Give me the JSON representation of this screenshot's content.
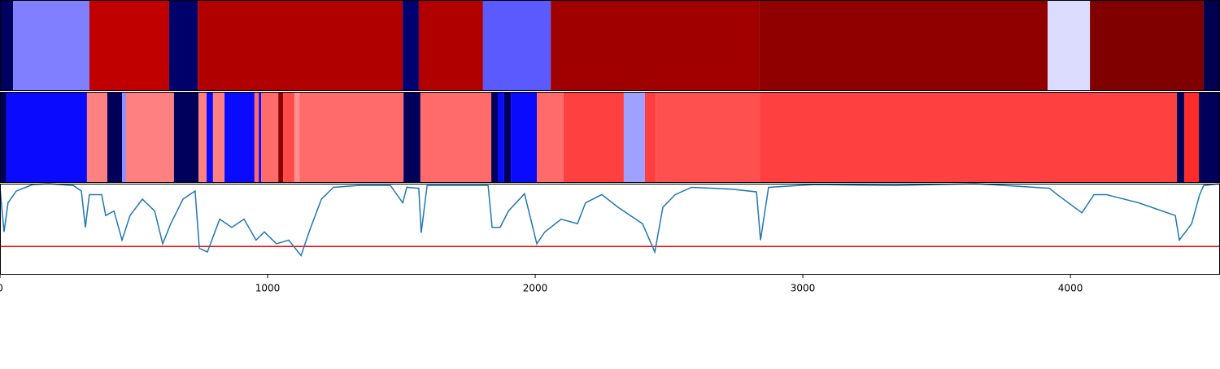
{
  "chart_data": [
    {
      "type": "strip",
      "xlim": [
        0,
        4559
      ],
      "edges": [
        0,
        49,
        334,
        632,
        739,
        1505,
        1565,
        1805,
        2058,
        2836,
        3915,
        4073,
        4498,
        4559
      ],
      "colors": [
        "#000060",
        "#7f7fff",
        "#c00000",
        "#00006a",
        "#b00000",
        "#000070",
        "#b00000",
        "#5a5aff",
        "#a00000",
        "#900000",
        "#dcdcff",
        "#800000",
        "#000050"
      ]
    },
    {
      "type": "strip",
      "xlim": [
        0,
        4559
      ],
      "edges": [
        0,
        24,
        325,
        401,
        456,
        471,
        650,
        742,
        772,
        796,
        839,
        951,
        967,
        976,
        1040,
        1058,
        1100,
        1119,
        1508,
        1571,
        1836,
        1860,
        1884,
        1909,
        2006,
        2106,
        2331,
        2410,
        2450,
        2839,
        4398,
        4426,
        4480,
        4559
      ],
      "colors": [
        "#00005a",
        "#0a0aff",
        "#ff8080",
        "#00005a",
        "#9090ff",
        "#ff8080",
        "#00005a",
        "#ff8080",
        "#0a0aff",
        "#ff8080",
        "#0a0aff",
        "#ff6a6a",
        "#0a0aff",
        "#ff6a6a",
        "#8b0000",
        "#ff4a4a",
        "#ff9090",
        "#ff6a6a",
        "#00005a",
        "#ff6a6a",
        "#00005a",
        "#0a0aff",
        "#00005a",
        "#0a0aff",
        "#ff6a6a",
        "#ff4040",
        "#a0a0ff",
        "#ff4040",
        "#ff5050",
        "#ff4040",
        "#00005a",
        "#ff2a2a",
        "#00005a"
      ]
    },
    {
      "type": "line",
      "xlim": [
        0,
        4559
      ],
      "ylim": [
        0,
        1
      ],
      "color": "#1f77b4",
      "threshold": 0.31,
      "threshold_color": "#ff0000",
      "xticks": [
        0,
        1000,
        2000,
        3000,
        4000
      ],
      "x": [
        0,
        15,
        30,
        61,
        122,
        182,
        274,
        304,
        319,
        334,
        380,
        395,
        426,
        456,
        486,
        532,
        578,
        608,
        638,
        684,
        729,
        745,
        775,
        821,
        866,
        912,
        957,
        988,
        1033,
        1079,
        1125,
        1155,
        1201,
        1246,
        1337,
        1459,
        1505,
        1520,
        1565,
        1574,
        1596,
        1824,
        1839,
        1869,
        1900,
        1960,
        2006,
        2036,
        2097,
        2158,
        2188,
        2249,
        2310,
        2401,
        2447,
        2477,
        2523,
        2584,
        2736,
        2827,
        2842,
        2872,
        3040,
        3343,
        3647,
        3921,
        3951,
        4043,
        4088,
        4134,
        4255,
        4392,
        4407,
        4453,
        4483,
        4498,
        4559
      ],
      "values": [
        0.96,
        0.47,
        0.79,
        0.92,
        0.99,
        1.0,
        0.98,
        0.92,
        0.52,
        0.88,
        0.88,
        0.65,
        0.7,
        0.38,
        0.65,
        0.83,
        0.7,
        0.34,
        0.56,
        0.83,
        0.92,
        0.29,
        0.25,
        0.61,
        0.52,
        0.61,
        0.38,
        0.47,
        0.34,
        0.38,
        0.21,
        0.47,
        0.83,
        0.96,
        0.98,
        0.98,
        0.79,
        0.96,
        0.95,
        0.46,
        0.98,
        0.98,
        0.52,
        0.52,
        0.7,
        0.89,
        0.34,
        0.47,
        0.61,
        0.56,
        0.79,
        0.88,
        0.74,
        0.56,
        0.25,
        0.74,
        0.88,
        0.96,
        0.94,
        0.91,
        0.38,
        0.96,
        0.99,
        0.98,
        1.0,
        0.95,
        0.88,
        0.68,
        0.88,
        0.88,
        0.79,
        0.65,
        0.38,
        0.56,
        0.88,
        0.98,
        1.0
      ]
    }
  ]
}
